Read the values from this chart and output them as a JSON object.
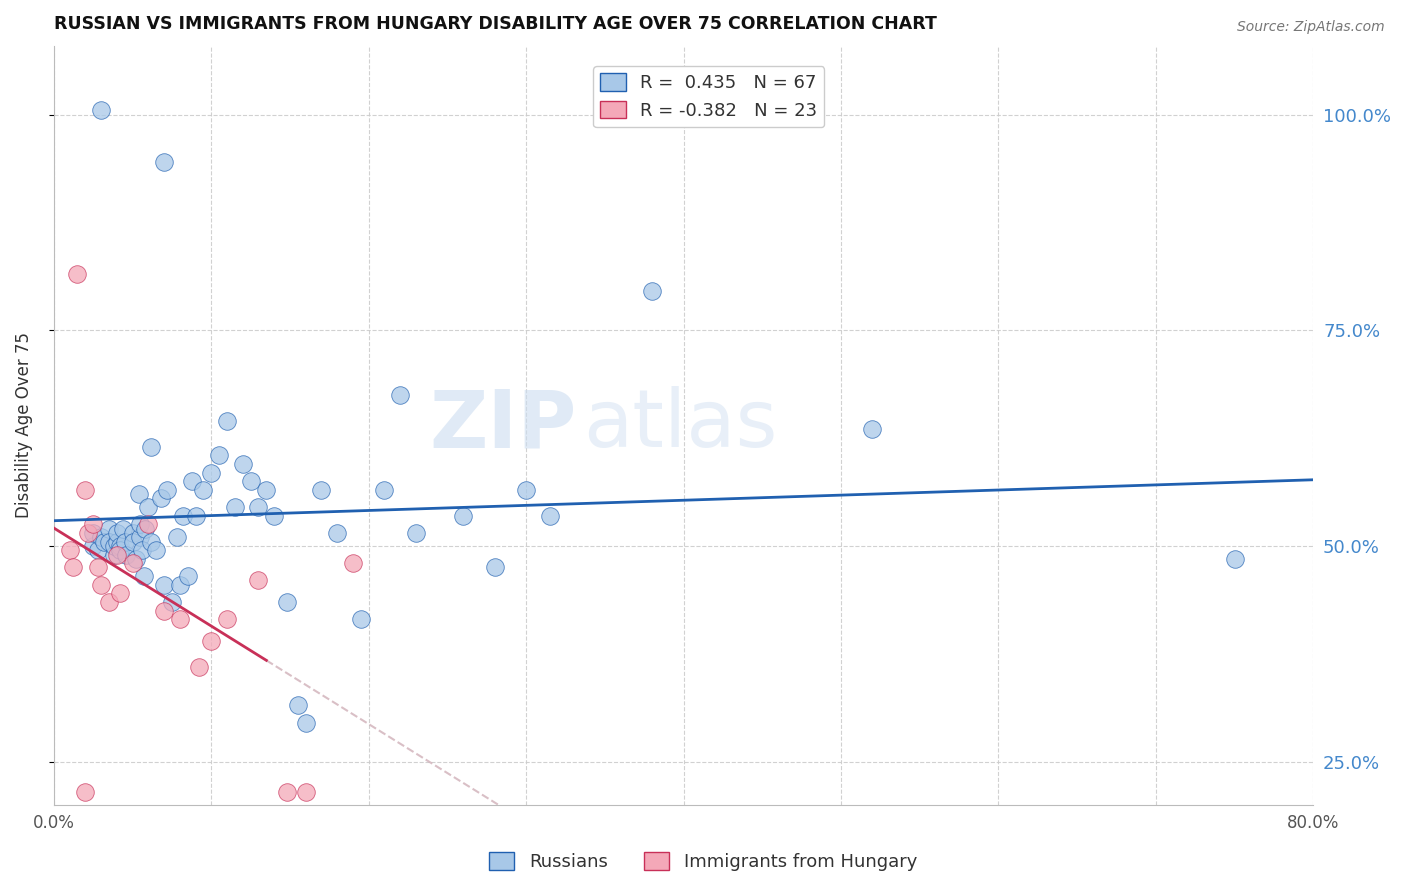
{
  "title": "RUSSIAN VS IMMIGRANTS FROM HUNGARY DISABILITY AGE OVER 75 CORRELATION CHART",
  "source": "Source: ZipAtlas.com",
  "ylabel": "Disability Age Over 75",
  "xlim": [
    0.0,
    0.8
  ],
  "ylim": [
    0.2,
    1.08
  ],
  "x_ticks": [
    0.0,
    0.1,
    0.2,
    0.3,
    0.4,
    0.5,
    0.6,
    0.7,
    0.8
  ],
  "x_tick_labels": [
    "0.0%",
    "",
    "",
    "",
    "",
    "",
    "",
    "",
    "80.0%"
  ],
  "y_tick_labels_right": [
    "100.0%",
    "75.0%",
    "50.0%",
    "25.0%"
  ],
  "y_tick_vals_right": [
    1.0,
    0.75,
    0.5,
    0.25
  ],
  "legend_r_blue": "R =  0.435",
  "legend_n_blue": "N = 67",
  "legend_r_pink": "R = -0.382",
  "legend_n_pink": "N = 23",
  "blue_color": "#a8c8e8",
  "pink_color": "#f4a8b8",
  "line_blue": "#2060b0",
  "line_pink": "#c83058",
  "line_gray": "#d0b0b8",
  "watermark": "ZIPatlas",
  "russians_x": [
    0.025,
    0.025,
    0.028,
    0.03,
    0.032,
    0.035,
    0.035,
    0.038,
    0.038,
    0.04,
    0.04,
    0.042,
    0.042,
    0.044,
    0.045,
    0.046,
    0.05,
    0.05,
    0.052,
    0.054,
    0.055,
    0.055,
    0.056,
    0.057,
    0.058,
    0.06,
    0.062,
    0.062,
    0.065,
    0.068,
    0.07,
    0.072,
    0.075,
    0.078,
    0.08,
    0.082,
    0.085,
    0.088,
    0.09,
    0.095,
    0.1,
    0.105,
    0.11,
    0.115,
    0.12,
    0.125,
    0.13,
    0.135,
    0.14,
    0.148,
    0.155,
    0.16,
    0.17,
    0.18,
    0.195,
    0.21,
    0.23,
    0.26,
    0.28,
    0.315,
    0.22,
    0.3,
    0.38,
    0.52,
    0.75,
    0.03,
    0.07
  ],
  "russians_y": [
    0.5,
    0.515,
    0.495,
    0.51,
    0.505,
    0.52,
    0.505,
    0.49,
    0.5,
    0.505,
    0.515,
    0.5,
    0.495,
    0.52,
    0.505,
    0.49,
    0.515,
    0.505,
    0.485,
    0.56,
    0.51,
    0.525,
    0.495,
    0.465,
    0.52,
    0.545,
    0.615,
    0.505,
    0.495,
    0.555,
    0.455,
    0.565,
    0.435,
    0.51,
    0.455,
    0.535,
    0.465,
    0.575,
    0.535,
    0.565,
    0.585,
    0.605,
    0.645,
    0.545,
    0.595,
    0.575,
    0.545,
    0.565,
    0.535,
    0.435,
    0.315,
    0.295,
    0.565,
    0.515,
    0.415,
    0.565,
    0.515,
    0.535,
    0.475,
    0.535,
    0.675,
    0.565,
    0.795,
    0.635,
    0.485,
    1.005,
    0.945
  ],
  "hungary_x": [
    0.01,
    0.012,
    0.015,
    0.02,
    0.022,
    0.025,
    0.028,
    0.03,
    0.035,
    0.04,
    0.042,
    0.05,
    0.06,
    0.07,
    0.08,
    0.092,
    0.1,
    0.11,
    0.13,
    0.148,
    0.16,
    0.19,
    0.02
  ],
  "hungary_y": [
    0.495,
    0.475,
    0.815,
    0.565,
    0.515,
    0.525,
    0.475,
    0.455,
    0.435,
    0.49,
    0.445,
    0.48,
    0.525,
    0.425,
    0.415,
    0.36,
    0.39,
    0.415,
    0.46,
    0.215,
    0.215,
    0.48,
    0.215
  ]
}
